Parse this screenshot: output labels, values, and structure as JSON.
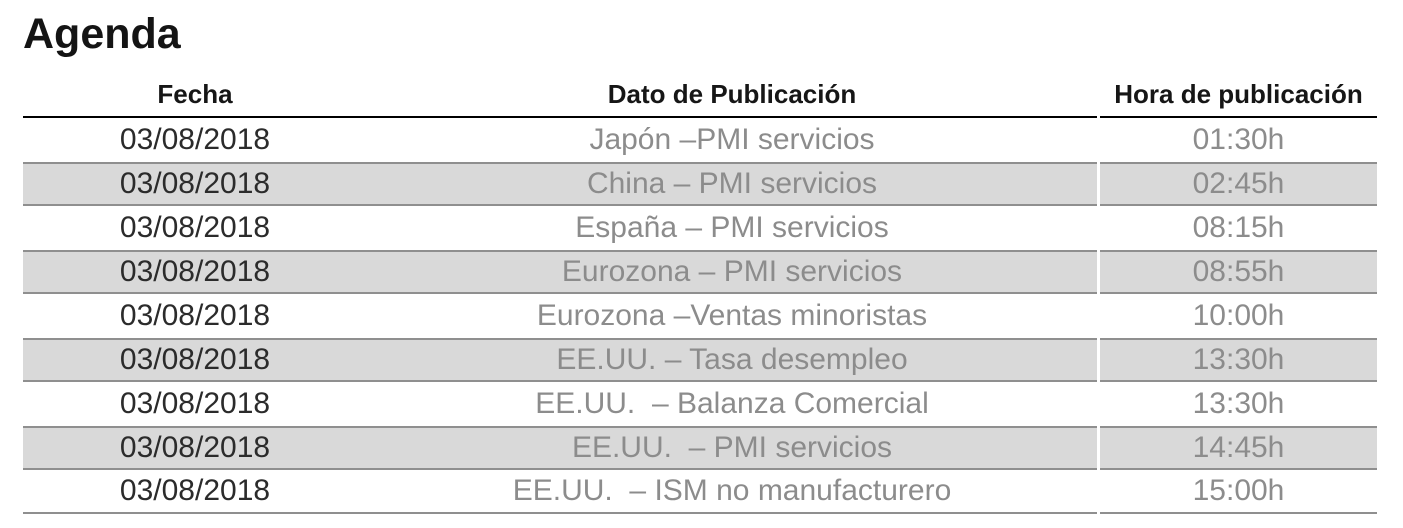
{
  "page": {
    "title": "Agenda"
  },
  "table": {
    "columns": {
      "fecha": "Fecha",
      "dato": "Dato de Publicación",
      "hora": "Hora de publicación"
    },
    "rows": [
      {
        "fecha": "03/08/2018",
        "dato": "Japón –PMI servicios",
        "hora": "01:30h",
        "shaded": false
      },
      {
        "fecha": "03/08/2018",
        "dato": "China – PMI servicios",
        "hora": "02:45h",
        "shaded": true
      },
      {
        "fecha": "03/08/2018",
        "dato": "España – PMI servicios",
        "hora": "08:15h",
        "shaded": false
      },
      {
        "fecha": "03/08/2018",
        "dato": "Eurozona – PMI servicios",
        "hora": "08:55h",
        "shaded": true
      },
      {
        "fecha": "03/08/2018",
        "dato": "Eurozona –Ventas minoristas",
        "hora": "10:00h",
        "shaded": false
      },
      {
        "fecha": "03/08/2018",
        "dato": "EE.UU. – Tasa desempleo",
        "hora": "13:30h",
        "shaded": true
      },
      {
        "fecha": "03/08/2018",
        "dato": "EE.UU.  – Balanza Comercial",
        "hora": "13:30h",
        "shaded": false
      },
      {
        "fecha": "03/08/2018",
        "dato": "EE.UU.  – PMI servicios",
        "hora": "14:45h",
        "shaded": true
      },
      {
        "fecha": "03/08/2018",
        "dato": "EE.UU.  – ISM no manufacturero",
        "hora": "15:00h",
        "shaded": false
      }
    ]
  },
  "colors": {
    "title_text": "#141414",
    "header_text": "#161616",
    "date_text": "#2b2b2b",
    "muted_text": "#8c8c8c",
    "shaded_row_bg": "#d9d9d9",
    "row_border": "#8f8f8f",
    "header_rule": "#000000",
    "background": "#ffffff"
  }
}
